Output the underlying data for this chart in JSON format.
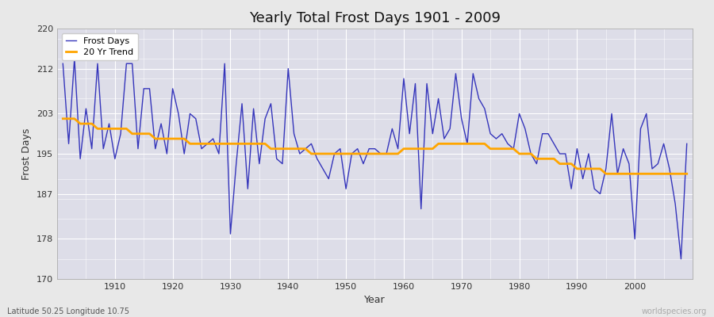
{
  "title": "Yearly Total Frost Days 1901 - 2009",
  "xlabel": "Year",
  "ylabel": "Frost Days",
  "ylim": [
    170,
    220
  ],
  "yticks": [
    170,
    178,
    187,
    195,
    203,
    212,
    220
  ],
  "years": [
    1901,
    1902,
    1903,
    1904,
    1905,
    1906,
    1907,
    1908,
    1909,
    1910,
    1911,
    1912,
    1913,
    1914,
    1915,
    1916,
    1917,
    1918,
    1919,
    1920,
    1921,
    1922,
    1923,
    1924,
    1925,
    1926,
    1927,
    1928,
    1929,
    1930,
    1931,
    1932,
    1933,
    1934,
    1935,
    1936,
    1937,
    1938,
    1939,
    1940,
    1941,
    1942,
    1943,
    1944,
    1945,
    1946,
    1947,
    1948,
    1949,
    1950,
    1951,
    1952,
    1953,
    1954,
    1955,
    1956,
    1957,
    1958,
    1959,
    1960,
    1961,
    1962,
    1963,
    1964,
    1965,
    1966,
    1967,
    1968,
    1969,
    1970,
    1971,
    1972,
    1973,
    1974,
    1975,
    1976,
    1977,
    1978,
    1979,
    1980,
    1981,
    1982,
    1983,
    1984,
    1985,
    1986,
    1987,
    1988,
    1989,
    1990,
    1991,
    1992,
    1993,
    1994,
    1995,
    1996,
    1997,
    1998,
    1999,
    2000,
    2001,
    2002,
    2003,
    2004,
    2005,
    2006,
    2007,
    2008,
    2009
  ],
  "frost_days": [
    213,
    197,
    214,
    194,
    204,
    196,
    213,
    196,
    201,
    194,
    199,
    213,
    213,
    196,
    208,
    208,
    196,
    201,
    195,
    208,
    203,
    195,
    203,
    202,
    196,
    197,
    198,
    195,
    213,
    179,
    193,
    205,
    188,
    204,
    193,
    202,
    205,
    194,
    193,
    212,
    199,
    195,
    196,
    197,
    194,
    192,
    190,
    195,
    196,
    188,
    195,
    196,
    193,
    196,
    196,
    195,
    195,
    200,
    196,
    210,
    199,
    209,
    184,
    209,
    199,
    206,
    198,
    200,
    211,
    202,
    197,
    211,
    206,
    204,
    199,
    198,
    199,
    197,
    196,
    203,
    200,
    195,
    193,
    199,
    199,
    197,
    195,
    195,
    188,
    196,
    190,
    195,
    188,
    187,
    192,
    203,
    191,
    196,
    193,
    178,
    200,
    203,
    192,
    193,
    197,
    192,
    185,
    174,
    197
  ],
  "trend_values": [
    202,
    202,
    202,
    201,
    201,
    201,
    200,
    200,
    200,
    200,
    200,
    200,
    199,
    199,
    199,
    199,
    198,
    198,
    198,
    198,
    198,
    198,
    197,
    197,
    197,
    197,
    197,
    197,
    197,
    197,
    197,
    197,
    197,
    197,
    197,
    197,
    196,
    196,
    196,
    196,
    196,
    196,
    196,
    195,
    195,
    195,
    195,
    195,
    195,
    195,
    195,
    195,
    195,
    195,
    195,
    195,
    195,
    195,
    195,
    196,
    196,
    196,
    196,
    196,
    196,
    197,
    197,
    197,
    197,
    197,
    197,
    197,
    197,
    197,
    196,
    196,
    196,
    196,
    196,
    195,
    195,
    195,
    194,
    194,
    194,
    194,
    193,
    193,
    193,
    192,
    192,
    192,
    192,
    192,
    191,
    191,
    191,
    191,
    191,
    191,
    191,
    191,
    191,
    191,
    191,
    191,
    191,
    191,
    191
  ],
  "frost_color": "#3535bb",
  "trend_color": "#FFA500",
  "plot_bg_color": "#dddde8",
  "grid_color": "#ffffff",
  "fig_bg_color": "#e8e8e8",
  "bottom_left_text": "Latitude 50.25 Longitude 10.75",
  "bottom_right_text": "worldspecies.org",
  "xtick_start": 1910,
  "xtick_step": 10,
  "xlim": [
    1900,
    2010
  ]
}
